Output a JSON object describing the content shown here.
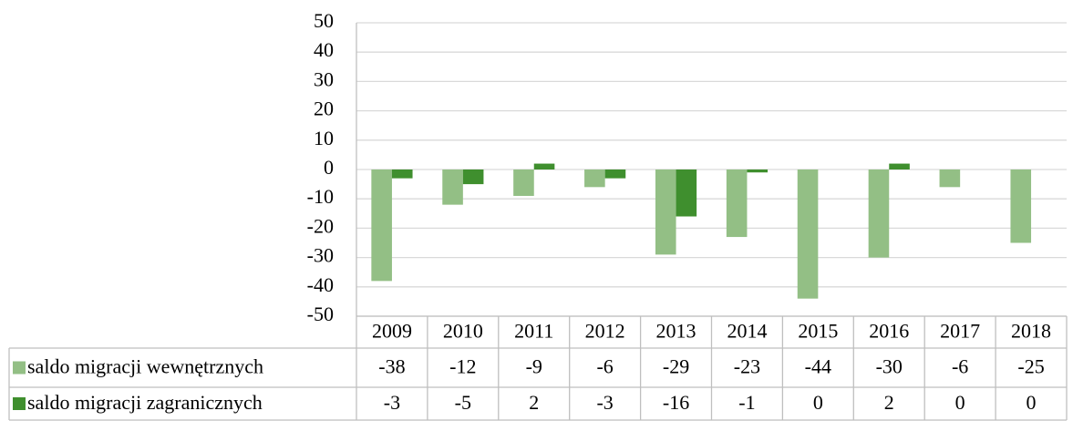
{
  "chart_data": {
    "type": "bar",
    "categories": [
      "2009",
      "2010",
      "2011",
      "2012",
      "2013",
      "2014",
      "2015",
      "2016",
      "2017",
      "2018"
    ],
    "series": [
      {
        "name": "saldo migracji wewnętrznych",
        "color": "#93bf85",
        "values": [
          -38,
          -12,
          -9,
          -6,
          -29,
          -23,
          -44,
          -30,
          -6,
          -25
        ]
      },
      {
        "name": "saldo migracji zagranicznych",
        "color": "#3f8f2e",
        "values": [
          -3,
          -5,
          2,
          -3,
          -16,
          -1,
          0,
          2,
          0,
          0
        ]
      }
    ],
    "ylim": [
      -50,
      50
    ],
    "yticks": [
      -50,
      -40,
      -30,
      -20,
      -10,
      0,
      10,
      20,
      30,
      40,
      50
    ],
    "grid": true
  }
}
